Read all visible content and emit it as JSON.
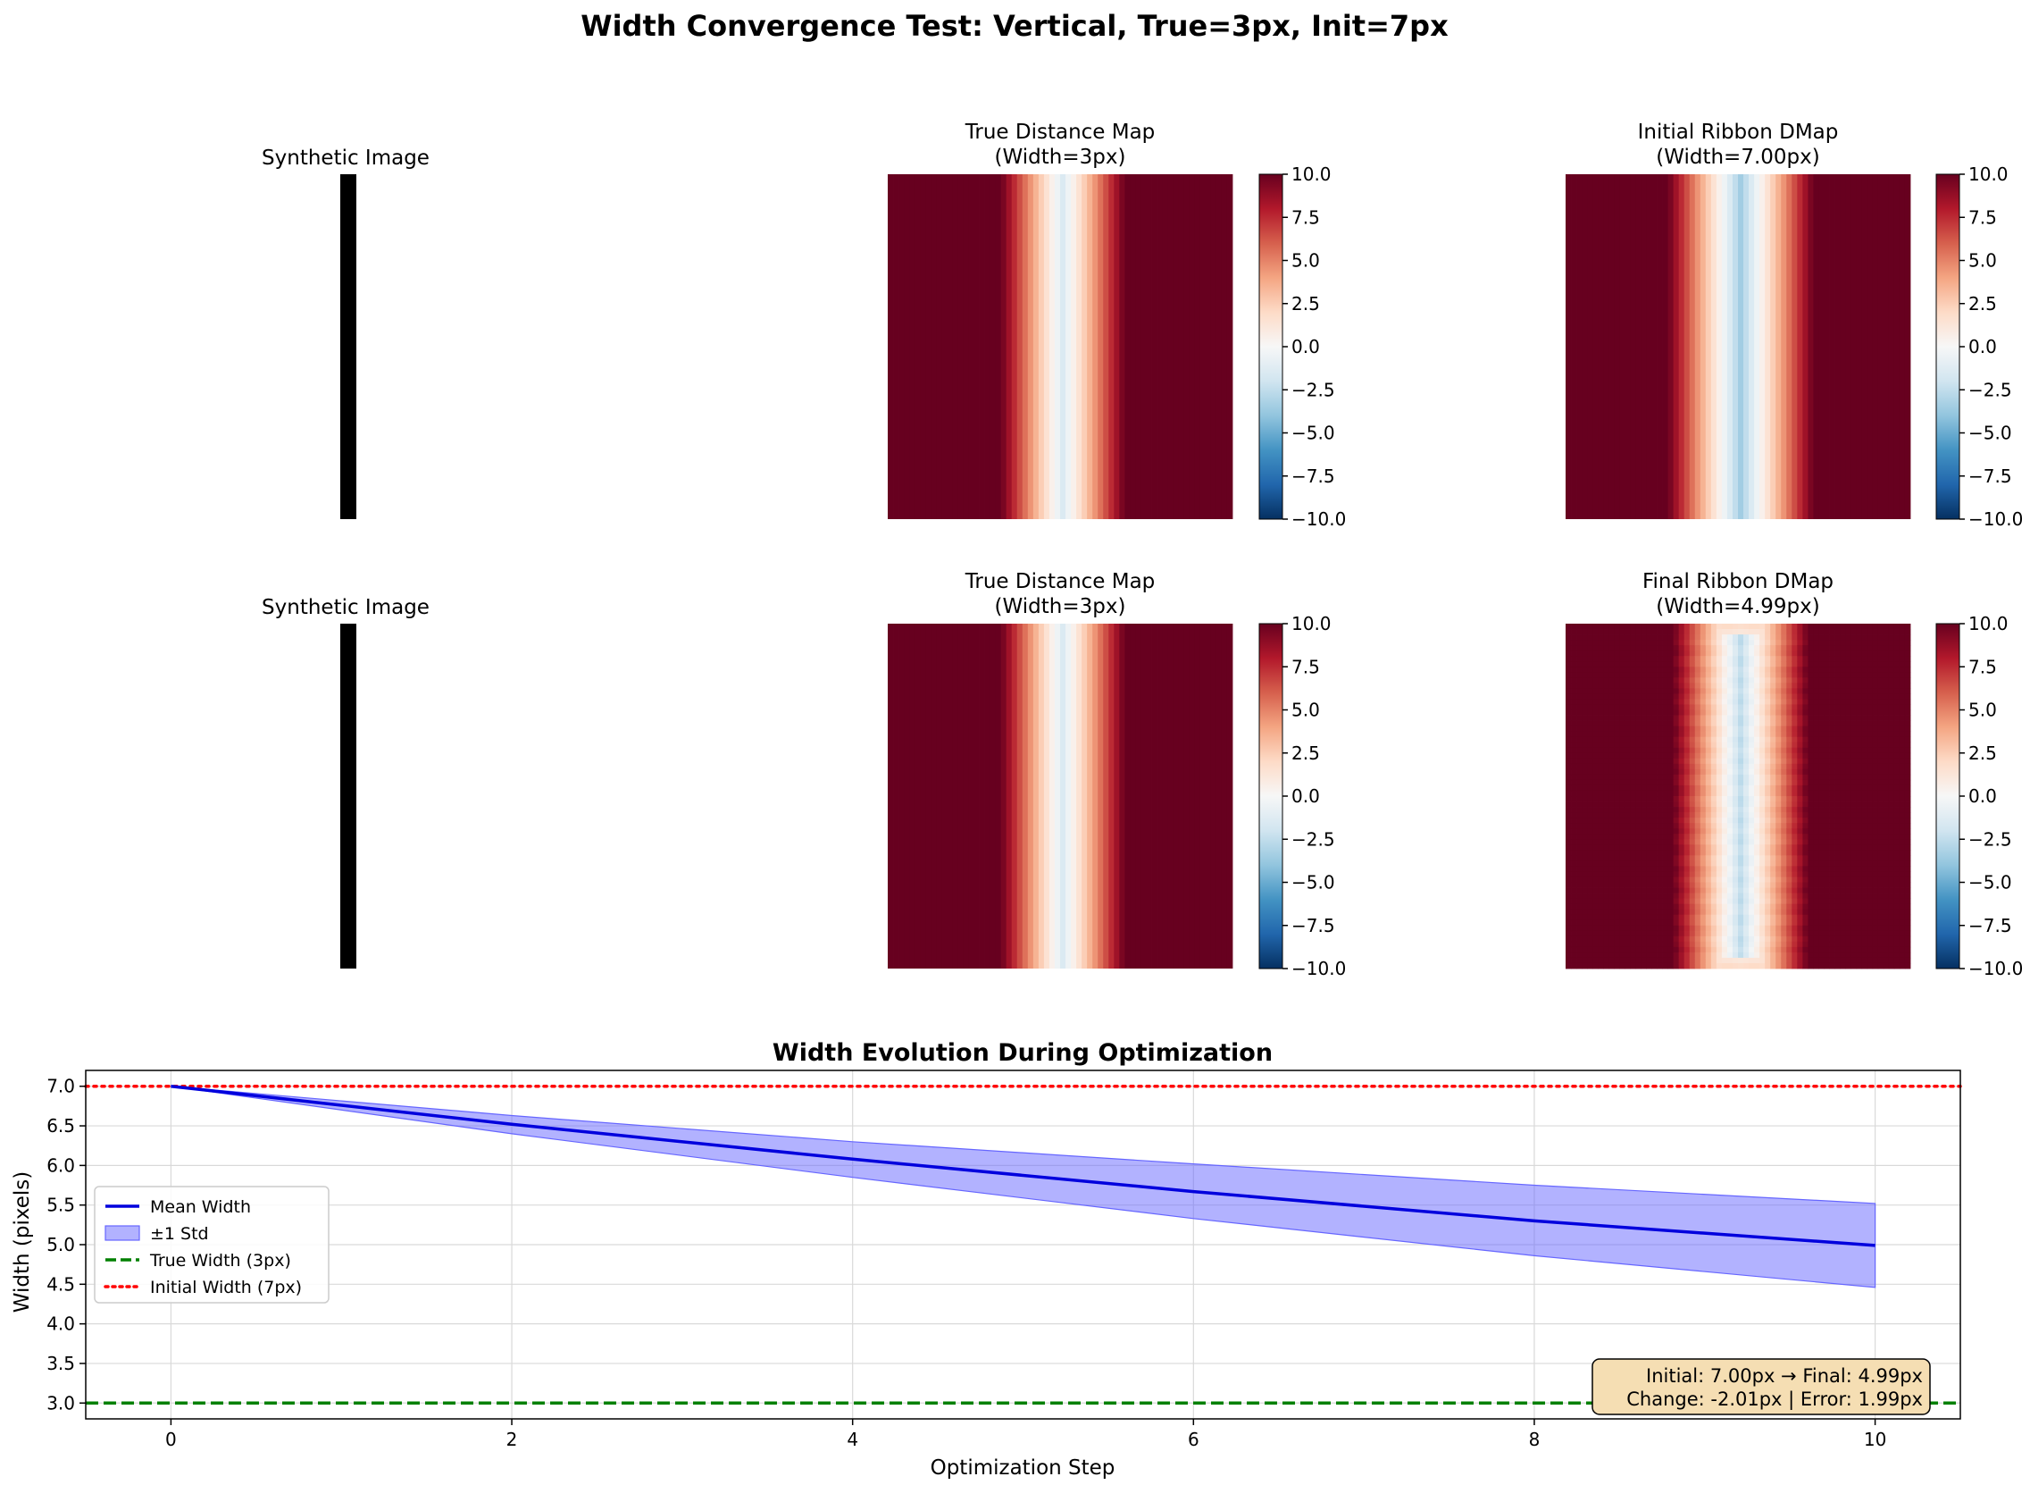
{
  "figure": {
    "title": "Width Convergence Test: Vertical, True=3px, Init=7px"
  },
  "colormap": {
    "name": "RdBu_r",
    "stops": [
      "#053061",
      "#2166ac",
      "#4393c3",
      "#92c5de",
      "#d1e5f0",
      "#f7f7f7",
      "#fddbc7",
      "#f4a582",
      "#d6604d",
      "#b2182b",
      "#67001f"
    ],
    "vmin": -10.0,
    "vmax": 10.0,
    "ticks": [
      "10.0",
      "7.5",
      "5.0",
      "2.5",
      "0.0",
      "−2.5",
      "−5.0",
      "−7.5",
      "−10.0"
    ]
  },
  "panels": [
    {
      "title": "Synthetic Image"
    },
    {
      "title_line1": "True Distance Map",
      "title_line2": "(Width=3px)"
    },
    {
      "title_line1": "Initial Ribbon DMap",
      "title_line2": "(Width=7.00px)"
    },
    {
      "title": "Synthetic Image"
    },
    {
      "title_line1": "True Distance Map",
      "title_line2": "(Width=3px)"
    },
    {
      "title_line1": "Final Ribbon DMap",
      "title_line2": "(Width=4.99px)"
    }
  ],
  "chart_data": {
    "type": "line",
    "title": "Width Evolution During Optimization",
    "xlabel": "Optimization Step",
    "ylabel": "Width (pixels)",
    "xlim": [
      -0.5,
      10.5
    ],
    "ylim": [
      2.8,
      7.2
    ],
    "xticks": [
      0,
      2,
      4,
      6,
      8,
      10
    ],
    "yticks": [
      3.0,
      3.5,
      4.0,
      4.5,
      5.0,
      5.5,
      6.0,
      6.5,
      7.0
    ],
    "grid": true,
    "x": [
      0,
      2,
      4,
      6,
      8,
      10
    ],
    "mean": [
      7.0,
      6.52,
      6.08,
      5.67,
      5.3,
      4.99
    ],
    "std_lower": [
      7.0,
      6.4,
      5.85,
      5.33,
      4.86,
      4.46
    ],
    "std_upper": [
      7.0,
      6.63,
      6.3,
      6.02,
      5.75,
      5.52
    ],
    "true_width": 3.0,
    "initial_width": 7.0,
    "colors": {
      "mean": "#0000dd",
      "band": "#6666ff",
      "true": "#008000",
      "initial": "#ff0000"
    },
    "legend": {
      "placement": "center-left",
      "entries": [
        "Mean Width",
        "±1 Std",
        "True Width (3px)",
        "Initial Width (7px)"
      ]
    },
    "annotation": {
      "line1": "Initial: 7.00px → Final: 4.99px",
      "line2": "Change: -2.01px | Error: 1.99px"
    }
  }
}
